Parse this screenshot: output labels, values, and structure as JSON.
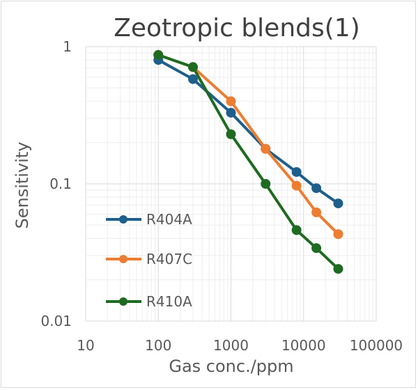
{
  "chart_data": {
    "type": "line",
    "title": "Zeotropic blends(1)",
    "xlabel": "Gas conc./ppm",
    "ylabel": "Sensitivity",
    "x_scale": "log",
    "y_scale": "log",
    "xlim": [
      10,
      100000
    ],
    "ylim": [
      0.01,
      1
    ],
    "x_ticks": [
      "10",
      "100",
      "1000",
      "10000",
      "100000"
    ],
    "y_ticks": [
      "1",
      "0.1",
      "0.01"
    ],
    "grid": "major and minor",
    "legend_position": "left-bottom inside plot",
    "series": [
      {
        "name": "R404A",
        "color": "#1f5f8b",
        "x": [
          100,
          300,
          1000,
          3000,
          8000,
          15000,
          30000
        ],
        "y": [
          0.8,
          0.58,
          0.33,
          0.18,
          0.122,
          0.093,
          0.072
        ]
      },
      {
        "name": "R407C",
        "color": "#ed7d31",
        "x": [
          100,
          300,
          1000,
          3000,
          8000,
          15000,
          30000
        ],
        "y": [
          0.87,
          0.71,
          0.4,
          0.18,
          0.097,
          0.062,
          0.043
        ]
      },
      {
        "name": "R410A",
        "color": "#1e6b21",
        "x": [
          100,
          300,
          1000,
          3000,
          8000,
          15000,
          30000
        ],
        "y": [
          0.87,
          0.71,
          0.23,
          0.1,
          0.046,
          0.034,
          0.024
        ]
      }
    ]
  }
}
